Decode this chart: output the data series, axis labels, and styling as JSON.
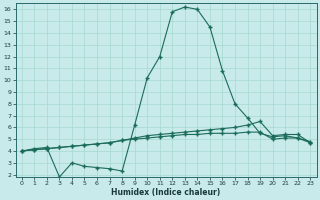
{
  "background_color": "#c8eaea",
  "line_color": "#1a6b5a",
  "grid_color": "#a8d8d0",
  "xlabel": "Humidex (Indice chaleur)",
  "xlim_min": -0.5,
  "xlim_max": 23.5,
  "ylim_min": 1.8,
  "ylim_max": 16.5,
  "xticks": [
    0,
    1,
    2,
    3,
    4,
    5,
    6,
    7,
    8,
    9,
    10,
    11,
    12,
    13,
    14,
    15,
    16,
    17,
    18,
    19,
    20,
    21,
    22,
    23
  ],
  "yticks": [
    2,
    3,
    4,
    5,
    6,
    7,
    8,
    9,
    10,
    11,
    12,
    13,
    14,
    15,
    16
  ],
  "curve_main_x": [
    0,
    1,
    2,
    3,
    4,
    5,
    6,
    7,
    8,
    9,
    10,
    11,
    12,
    13,
    14,
    15,
    16,
    17,
    18,
    19,
    20,
    21,
    22,
    23
  ],
  "curve_main_y": [
    4.0,
    4.2,
    4.3,
    1.8,
    3.0,
    2.7,
    2.6,
    2.5,
    2.3,
    6.2,
    10.2,
    12.0,
    15.8,
    16.2,
    16.0,
    14.5,
    10.8,
    8.0,
    6.8,
    5.5,
    5.2,
    5.3,
    5.1,
    4.8
  ],
  "curve_upper_x": [
    0,
    1,
    2,
    3,
    4,
    5,
    6,
    7,
    8,
    9,
    10,
    11,
    12,
    13,
    14,
    15,
    16,
    17,
    18,
    19,
    20,
    21,
    22,
    23
  ],
  "curve_upper_y": [
    4.0,
    4.1,
    4.2,
    4.3,
    4.4,
    4.5,
    4.6,
    4.7,
    4.9,
    5.1,
    5.3,
    5.4,
    5.5,
    5.6,
    5.7,
    5.8,
    5.9,
    6.0,
    6.2,
    6.5,
    5.3,
    5.4,
    5.4,
    4.7
  ],
  "curve_lower_x": [
    0,
    1,
    2,
    3,
    4,
    5,
    6,
    7,
    8,
    9,
    10,
    11,
    12,
    13,
    14,
    15,
    16,
    17,
    18,
    19,
    20,
    21,
    22,
    23
  ],
  "curve_lower_y": [
    4.0,
    4.1,
    4.2,
    4.3,
    4.4,
    4.5,
    4.6,
    4.7,
    4.9,
    5.0,
    5.1,
    5.2,
    5.3,
    5.4,
    5.4,
    5.5,
    5.5,
    5.5,
    5.6,
    5.6,
    5.0,
    5.1,
    5.1,
    4.7
  ]
}
